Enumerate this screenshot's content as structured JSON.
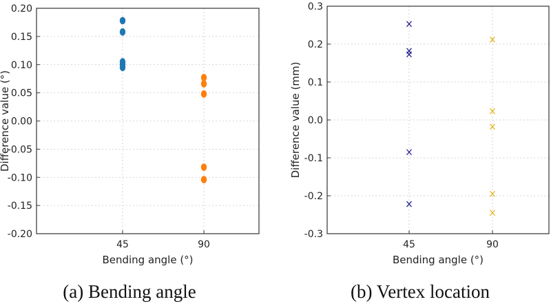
{
  "chart_data": [
    {
      "type": "scatter",
      "caption": "(a) Bending angle",
      "xlabel": "Bending angle (°)",
      "ylabel": "Difference value (°)",
      "categories": [
        "45",
        "90"
      ],
      "ylim": [
        -0.2,
        0.2
      ],
      "yticks": [
        "0.20",
        "0.15",
        "0.10",
        "0.05",
        "0.00",
        "-0.05",
        "-0.10",
        "-0.15",
        "-0.20"
      ],
      "marker": "circle",
      "grid": true,
      "series": [
        {
          "category": "45",
          "color": "#1f77b4",
          "values": [
            0.178,
            0.158,
            0.105,
            0.1,
            0.095
          ]
        },
        {
          "category": "90",
          "color": "#ff7f0e",
          "values": [
            0.077,
            0.066,
            0.048,
            -0.082,
            -0.104
          ]
        }
      ]
    },
    {
      "type": "scatter",
      "caption": "(b) Vertex location",
      "xlabel": "Bending angle (°)",
      "ylabel": "Difference value (mm)",
      "categories": [
        "45",
        "90"
      ],
      "ylim": [
        -0.3,
        0.3
      ],
      "yticks": [
        "0.3",
        "0.2",
        "0.1",
        "0.0",
        "-0.1",
        "-0.2",
        "-0.3"
      ],
      "marker": "x",
      "grid": true,
      "series": [
        {
          "category": "45",
          "color": "#23238e",
          "values": [
            0.253,
            0.182,
            0.173,
            -0.085,
            -0.222
          ]
        },
        {
          "category": "90",
          "color": "#e6b422",
          "values": [
            0.212,
            0.023,
            -0.018,
            -0.195,
            -0.245
          ]
        }
      ]
    }
  ]
}
